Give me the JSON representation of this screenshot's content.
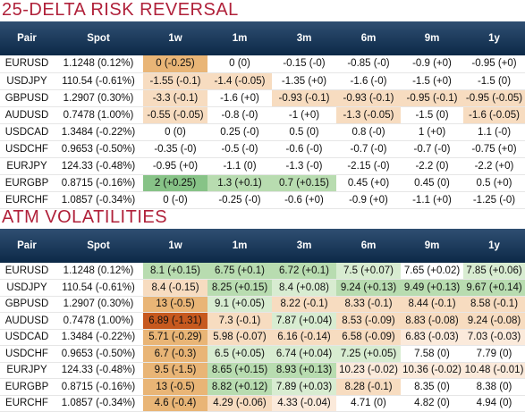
{
  "colors": {
    "title": "#b0213a",
    "header_bg": "#0c2947",
    "header_text": "#ffffff",
    "orange": "#e9b576",
    "peach": "#f7dcc0",
    "light_peach": "#fbeadb",
    "green": "#87c387",
    "light_green": "#b8dcb0",
    "pale_green": "#d8ecd1",
    "red": "#c7591f"
  },
  "rr": {
    "title": "25-DELTA RISK REVERSAL",
    "headers": [
      "Pair",
      "Spot",
      "1w",
      "1m",
      "3m",
      "6m",
      "9m",
      "1y"
    ],
    "rows": [
      {
        "pair": "EURUSD",
        "spot": "1.1248 (0.12%)",
        "cells": [
          {
            "text": "0 (-0.25)",
            "c": "orange"
          },
          {
            "text": "0 (0)",
            "c": "none"
          },
          {
            "text": "-0.15 (-0)",
            "c": "none"
          },
          {
            "text": "-0.85 (-0)",
            "c": "none"
          },
          {
            "text": "-0.9 (+0)",
            "c": "none"
          },
          {
            "text": "-0.95 (+0)",
            "c": "none"
          }
        ]
      },
      {
        "pair": "USDJPY",
        "spot": "110.54 (-0.61%)",
        "cells": [
          {
            "text": "-1.55 (-0.1)",
            "c": "peach"
          },
          {
            "text": "-1.4 (-0.05)",
            "c": "peach"
          },
          {
            "text": "-1.35 (+0)",
            "c": "none"
          },
          {
            "text": "-1.6 (-0)",
            "c": "none"
          },
          {
            "text": "-1.5 (+0)",
            "c": "none"
          },
          {
            "text": "-1.5 (0)",
            "c": "none"
          }
        ]
      },
      {
        "pair": "GBPUSD",
        "spot": "1.2907 (0.30%)",
        "cells": [
          {
            "text": "-3.3 (-0.1)",
            "c": "peach"
          },
          {
            "text": "-1.6 (+0)",
            "c": "none"
          },
          {
            "text": "-0.93 (-0.1)",
            "c": "peach"
          },
          {
            "text": "-0.93 (-0.1)",
            "c": "peach"
          },
          {
            "text": "-0.95 (-0.1)",
            "c": "peach"
          },
          {
            "text": "-0.95 (-0.05)",
            "c": "peach"
          }
        ]
      },
      {
        "pair": "AUDUSD",
        "spot": "0.7478 (1.00%)",
        "cells": [
          {
            "text": "-0.55 (-0.05)",
            "c": "peach"
          },
          {
            "text": "-0.8 (-0)",
            "c": "none"
          },
          {
            "text": "-1 (+0)",
            "c": "none"
          },
          {
            "text": "-1.3 (-0.05)",
            "c": "peach"
          },
          {
            "text": "-1.5 (0)",
            "c": "none"
          },
          {
            "text": "-1.6 (-0.05)",
            "c": "peach"
          }
        ]
      },
      {
        "pair": "USDCAD",
        "spot": "1.3484 (-0.22%)",
        "cells": [
          {
            "text": "0 (0)",
            "c": "none"
          },
          {
            "text": "0.25 (-0)",
            "c": "none"
          },
          {
            "text": "0.5 (0)",
            "c": "none"
          },
          {
            "text": "0.8 (-0)",
            "c": "none"
          },
          {
            "text": "1 (+0)",
            "c": "none"
          },
          {
            "text": "1.1 (-0)",
            "c": "none"
          }
        ]
      },
      {
        "pair": "USDCHF",
        "spot": "0.9653 (-0.50%)",
        "cells": [
          {
            "text": "-0.35 (-0)",
            "c": "none"
          },
          {
            "text": "-0.5 (-0)",
            "c": "none"
          },
          {
            "text": "-0.6 (-0)",
            "c": "none"
          },
          {
            "text": "-0.7 (-0)",
            "c": "none"
          },
          {
            "text": "-0.7 (-0)",
            "c": "none"
          },
          {
            "text": "-0.75 (+0)",
            "c": "none"
          }
        ]
      },
      {
        "pair": "EURJPY",
        "spot": "124.33 (-0.48%)",
        "cells": [
          {
            "text": "-0.95 (+0)",
            "c": "none"
          },
          {
            "text": "-1.1 (0)",
            "c": "none"
          },
          {
            "text": "-1.3 (-0)",
            "c": "none"
          },
          {
            "text": "-2.15 (-0)",
            "c": "none"
          },
          {
            "text": "-2.2 (0)",
            "c": "none"
          },
          {
            "text": "-2.2 (+0)",
            "c": "none"
          }
        ]
      },
      {
        "pair": "EURGBP",
        "spot": "0.8715 (-0.16%)",
        "cells": [
          {
            "text": "2 (+0.25)",
            "c": "green"
          },
          {
            "text": "1.3 (+0.1)",
            "c": "green2"
          },
          {
            "text": "0.7 (+0.15)",
            "c": "green2"
          },
          {
            "text": "0.45 (+0)",
            "c": "none"
          },
          {
            "text": "0.45 (0)",
            "c": "none"
          },
          {
            "text": "0.5 (+0)",
            "c": "none"
          }
        ]
      },
      {
        "pair": "EURCHF",
        "spot": "1.0857 (-0.34%)",
        "cells": [
          {
            "text": "0 (-0)",
            "c": "none"
          },
          {
            "text": "-0.25 (-0)",
            "c": "none"
          },
          {
            "text": "-0.6 (+0)",
            "c": "none"
          },
          {
            "text": "-0.9 (+0)",
            "c": "none"
          },
          {
            "text": "-1.1 (+0)",
            "c": "none"
          },
          {
            "text": "-1.25 (-0)",
            "c": "none"
          }
        ]
      }
    ]
  },
  "atm": {
    "title": "ATM VOLATILITIES",
    "headers": [
      "Pair",
      "Spot",
      "1w",
      "1m",
      "3m",
      "6m",
      "9m",
      "1y"
    ],
    "rows": [
      {
        "pair": "EURUSD",
        "spot": "1.1248 (0.12%)",
        "cells": [
          {
            "text": "8.1 (+0.15)",
            "c": "green2"
          },
          {
            "text": "6.75 (+0.1)",
            "c": "green2"
          },
          {
            "text": "6.72 (+0.1)",
            "c": "green2"
          },
          {
            "text": "7.5 (+0.07)",
            "c": "green3"
          },
          {
            "text": "7.65 (+0.02)",
            "c": "none"
          },
          {
            "text": "7.85 (+0.06)",
            "c": "green3"
          }
        ]
      },
      {
        "pair": "USDJPY",
        "spot": "110.54 (-0.61%)",
        "cells": [
          {
            "text": "8.4 (-0.15)",
            "c": "peach"
          },
          {
            "text": "8.25 (+0.15)",
            "c": "green2"
          },
          {
            "text": "8.4 (+0.08)",
            "c": "green3"
          },
          {
            "text": "9.24 (+0.13)",
            "c": "green2"
          },
          {
            "text": "9.49 (+0.13)",
            "c": "green2"
          },
          {
            "text": "9.67 (+0.14)",
            "c": "green2"
          }
        ]
      },
      {
        "pair": "GBPUSD",
        "spot": "1.2907 (0.30%)",
        "cells": [
          {
            "text": "13 (-0.5)",
            "c": "orange"
          },
          {
            "text": "9.1 (+0.05)",
            "c": "green3"
          },
          {
            "text": "8.22 (-0.1)",
            "c": "peach"
          },
          {
            "text": "8.33 (-0.1)",
            "c": "peach"
          },
          {
            "text": "8.44 (-0.1)",
            "c": "peach"
          },
          {
            "text": "8.58 (-0.1)",
            "c": "peach"
          }
        ]
      },
      {
        "pair": "AUDUSD",
        "spot": "0.7478 (1.00%)",
        "cells": [
          {
            "text": "6.89 (-1.31)",
            "c": "red"
          },
          {
            "text": "7.3 (-0.1)",
            "c": "peach"
          },
          {
            "text": "7.87 (+0.04)",
            "c": "green3"
          },
          {
            "text": "8.53 (-0.09)",
            "c": "peach"
          },
          {
            "text": "8.83 (-0.08)",
            "c": "peach"
          },
          {
            "text": "9.24 (-0.08)",
            "c": "peach"
          }
        ]
      },
      {
        "pair": "USDCAD",
        "spot": "1.3484 (-0.22%)",
        "cells": [
          {
            "text": "5.71 (-0.29)",
            "c": "orange"
          },
          {
            "text": "5.98 (-0.07)",
            "c": "peach"
          },
          {
            "text": "6.16 (-0.14)",
            "c": "peach"
          },
          {
            "text": "6.58 (-0.09)",
            "c": "peach"
          },
          {
            "text": "6.83 (-0.03)",
            "c": "lpeach"
          },
          {
            "text": "7.03 (-0.03)",
            "c": "lpeach"
          }
        ]
      },
      {
        "pair": "USDCHF",
        "spot": "0.9653 (-0.50%)",
        "cells": [
          {
            "text": "6.7 (-0.3)",
            "c": "orange"
          },
          {
            "text": "6.5 (+0.05)",
            "c": "green3"
          },
          {
            "text": "6.74 (+0.04)",
            "c": "green3"
          },
          {
            "text": "7.25 (+0.05)",
            "c": "green3"
          },
          {
            "text": "7.58 (0)",
            "c": "none"
          },
          {
            "text": "7.79 (0)",
            "c": "none"
          }
        ]
      },
      {
        "pair": "EURJPY",
        "spot": "124.33 (-0.48%)",
        "cells": [
          {
            "text": "9.5 (-1.5)",
            "c": "orange"
          },
          {
            "text": "8.65 (+0.15)",
            "c": "green2"
          },
          {
            "text": "8.93 (+0.13)",
            "c": "green2"
          },
          {
            "text": "10.23 (-0.02)",
            "c": "lpeach"
          },
          {
            "text": "10.36 (-0.02)",
            "c": "lpeach"
          },
          {
            "text": "10.48 (-0.01)",
            "c": "lpeach"
          }
        ]
      },
      {
        "pair": "EURGBP",
        "spot": "0.8715 (-0.16%)",
        "cells": [
          {
            "text": "13 (-0.5)",
            "c": "orange"
          },
          {
            "text": "8.82 (+0.12)",
            "c": "green2"
          },
          {
            "text": "7.89 (+0.03)",
            "c": "green3"
          },
          {
            "text": "8.28 (-0.1)",
            "c": "peach"
          },
          {
            "text": "8.35 (0)",
            "c": "none"
          },
          {
            "text": "8.38 (0)",
            "c": "none"
          }
        ]
      },
      {
        "pair": "EURCHF",
        "spot": "1.0857 (-0.34%)",
        "cells": [
          {
            "text": "4.6 (-0.4)",
            "c": "orange"
          },
          {
            "text": "4.29 (-0.06)",
            "c": "peach"
          },
          {
            "text": "4.33 (-0.04)",
            "c": "lpeach"
          },
          {
            "text": "4.71 (0)",
            "c": "none"
          },
          {
            "text": "4.82 (0)",
            "c": "none"
          },
          {
            "text": "4.94 (0)",
            "c": "none"
          }
        ]
      }
    ]
  }
}
